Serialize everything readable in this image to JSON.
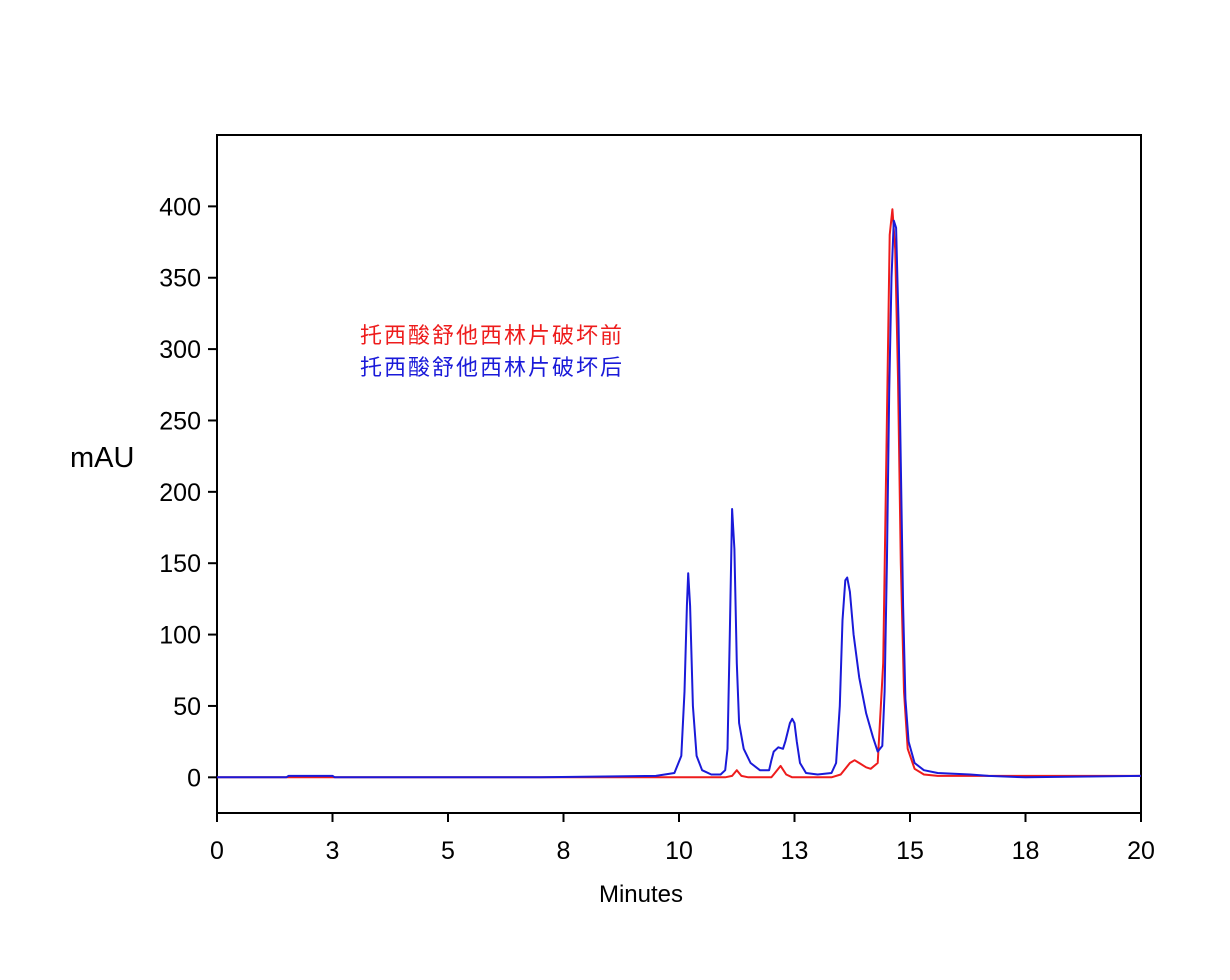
{
  "chart_data": {
    "type": "line",
    "xlabel": "Minutes",
    "ylabel": "mAU",
    "xlim": [
      0,
      20
    ],
    "ylim": [
      -25,
      450
    ],
    "x_ticks": [
      {
        "value": 0,
        "label": "0"
      },
      {
        "value": 2.5,
        "label": "3"
      },
      {
        "value": 5,
        "label": "5"
      },
      {
        "value": 7.5,
        "label": "8"
      },
      {
        "value": 10,
        "label": "10"
      },
      {
        "value": 12.5,
        "label": "13"
      },
      {
        "value": 15,
        "label": "15"
      },
      {
        "value": 17.5,
        "label": "18"
      },
      {
        "value": 20,
        "label": "20"
      }
    ],
    "y_ticks": [
      {
        "value": 0,
        "label": "0"
      },
      {
        "value": 50,
        "label": "50"
      },
      {
        "value": 100,
        "label": "100"
      },
      {
        "value": 150,
        "label": "150"
      },
      {
        "value": 200,
        "label": "200"
      },
      {
        "value": 250,
        "label": "250"
      },
      {
        "value": 300,
        "label": "300"
      },
      {
        "value": 350,
        "label": "350"
      },
      {
        "value": 400,
        "label": "400"
      }
    ],
    "legend_position": "upper-left",
    "series": [
      {
        "name": "托西酸舒他西林片破坏前",
        "color": "#ee1c1c",
        "points": [
          [
            0,
            0
          ],
          [
            9.5,
            0
          ],
          [
            11,
            0
          ],
          [
            11.15,
            1
          ],
          [
            11.25,
            5
          ],
          [
            11.35,
            1
          ],
          [
            11.5,
            0
          ],
          [
            12,
            0
          ],
          [
            12.05,
            2
          ],
          [
            12.2,
            8
          ],
          [
            12.32,
            2
          ],
          [
            12.45,
            0
          ],
          [
            13.3,
            0
          ],
          [
            13.5,
            2
          ],
          [
            13.7,
            10
          ],
          [
            13.8,
            12
          ],
          [
            13.9,
            10
          ],
          [
            14.05,
            7
          ],
          [
            14.15,
            6
          ],
          [
            14.3,
            10
          ],
          [
            14.42,
            80
          ],
          [
            14.5,
            250
          ],
          [
            14.56,
            380
          ],
          [
            14.62,
            398
          ],
          [
            14.68,
            370
          ],
          [
            14.74,
            280
          ],
          [
            14.8,
            150
          ],
          [
            14.87,
            60
          ],
          [
            14.95,
            20
          ],
          [
            15.1,
            6
          ],
          [
            15.3,
            2
          ],
          [
            15.6,
            1
          ],
          [
            20,
            1
          ]
        ]
      },
      {
        "name": "托西酸舒他西林片破坏后",
        "color": "#1a1ad9",
        "points": [
          [
            0,
            0
          ],
          [
            1.5,
            0
          ],
          [
            1.55,
            1
          ],
          [
            2.5,
            1
          ],
          [
            2.55,
            0
          ],
          [
            7,
            0
          ],
          [
            9.5,
            1
          ],
          [
            9.9,
            3
          ],
          [
            10.05,
            15
          ],
          [
            10.12,
            60
          ],
          [
            10.17,
            120
          ],
          [
            10.2,
            143
          ],
          [
            10.24,
            120
          ],
          [
            10.3,
            50
          ],
          [
            10.38,
            15
          ],
          [
            10.5,
            5
          ],
          [
            10.7,
            2
          ],
          [
            10.9,
            2
          ],
          [
            11.0,
            5
          ],
          [
            11.05,
            20
          ],
          [
            11.1,
            100
          ],
          [
            11.15,
            188
          ],
          [
            11.2,
            160
          ],
          [
            11.25,
            80
          ],
          [
            11.3,
            38
          ],
          [
            11.4,
            20
          ],
          [
            11.55,
            10
          ],
          [
            11.75,
            5
          ],
          [
            11.95,
            5
          ],
          [
            12.0,
            12
          ],
          [
            12.05,
            18
          ],
          [
            12.15,
            21
          ],
          [
            12.25,
            20
          ],
          [
            12.3,
            25
          ],
          [
            12.4,
            38
          ],
          [
            12.45,
            41
          ],
          [
            12.5,
            38
          ],
          [
            12.55,
            25
          ],
          [
            12.62,
            10
          ],
          [
            12.75,
            3
          ],
          [
            13.0,
            2
          ],
          [
            13.3,
            3
          ],
          [
            13.4,
            10
          ],
          [
            13.48,
            50
          ],
          [
            13.54,
            110
          ],
          [
            13.6,
            138
          ],
          [
            13.64,
            140
          ],
          [
            13.7,
            130
          ],
          [
            13.78,
            100
          ],
          [
            13.9,
            70
          ],
          [
            14.05,
            45
          ],
          [
            14.2,
            28
          ],
          [
            14.3,
            18
          ],
          [
            14.4,
            22
          ],
          [
            14.45,
            60
          ],
          [
            14.5,
            150
          ],
          [
            14.55,
            270
          ],
          [
            14.6,
            350
          ],
          [
            14.65,
            390
          ],
          [
            14.7,
            385
          ],
          [
            14.75,
            320
          ],
          [
            14.8,
            220
          ],
          [
            14.85,
            120
          ],
          [
            14.9,
            55
          ],
          [
            14.97,
            25
          ],
          [
            15.1,
            10
          ],
          [
            15.3,
            5
          ],
          [
            15.6,
            3
          ],
          [
            16.3,
            2
          ],
          [
            16.7,
            1
          ],
          [
            17.5,
            0
          ],
          [
            20,
            1
          ]
        ]
      }
    ]
  }
}
